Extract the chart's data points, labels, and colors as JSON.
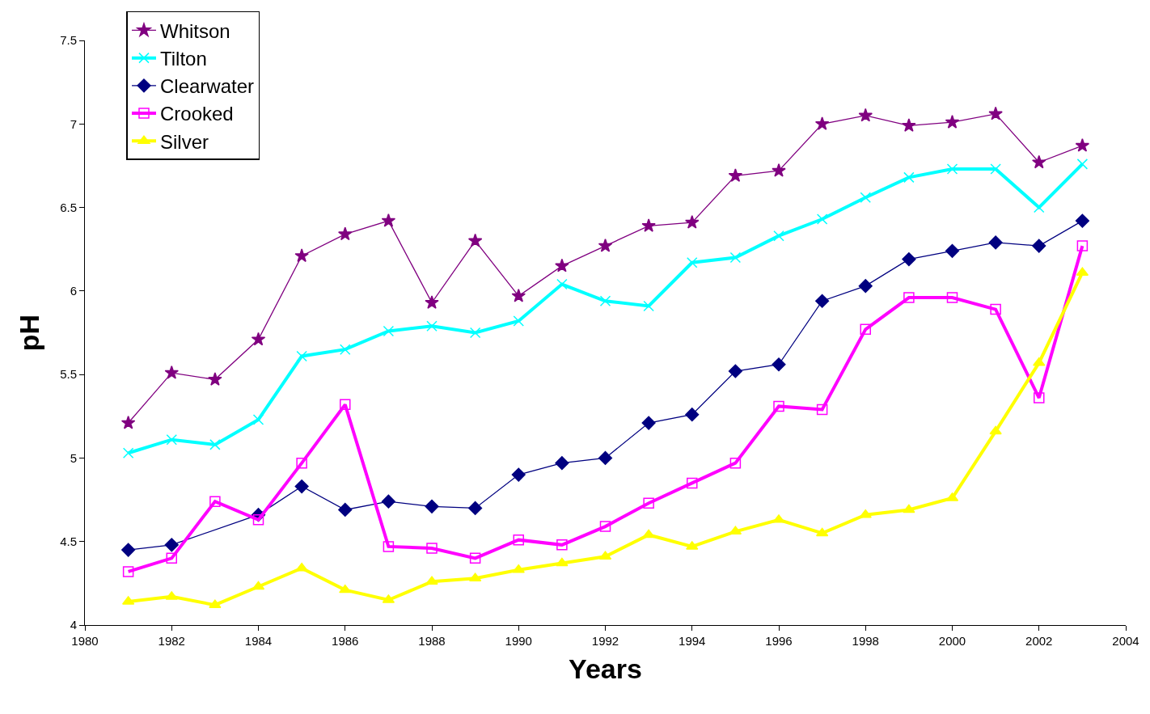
{
  "chart_data": {
    "type": "line",
    "xlabel": "Years",
    "ylabel": "pH",
    "x": [
      1981,
      1982,
      1983,
      1984,
      1985,
      1986,
      1987,
      1988,
      1989,
      1990,
      1991,
      1992,
      1993,
      1994,
      1995,
      1996,
      1997,
      1998,
      1999,
      2000,
      2001,
      2002,
      2003
    ],
    "xlim": [
      1980,
      2004
    ],
    "xticks": [
      1980,
      1982,
      1984,
      1986,
      1988,
      1990,
      1992,
      1994,
      1996,
      1998,
      2000,
      2002,
      2004
    ],
    "ylim": [
      4,
      7.5
    ],
    "yticks": [
      4,
      {
        "value": 4.5,
        "label": "4.5"
      },
      5,
      {
        "value": 5.5,
        "label": "5.5"
      },
      6,
      {
        "value": 6.5,
        "label": "6.5"
      },
      7,
      {
        "value": 7.5,
        "label": "7.5"
      }
    ],
    "legend": "top left",
    "series": [
      {
        "name": "Whitson",
        "color": "#800080",
        "marker": "star",
        "values": [
          5.21,
          5.51,
          5.47,
          5.71,
          6.21,
          6.34,
          6.42,
          5.93,
          6.3,
          5.97,
          6.15,
          6.27,
          6.39,
          6.41,
          6.69,
          6.72,
          7.0,
          7.05,
          6.99,
          7.01,
          7.06,
          6.77,
          6.87
        ]
      },
      {
        "name": "Tilton",
        "color": "#00ffff",
        "marker": "cross",
        "values": [
          5.03,
          5.11,
          5.08,
          5.23,
          5.61,
          5.65,
          5.76,
          5.79,
          5.75,
          5.82,
          6.04,
          5.94,
          5.91,
          6.17,
          6.2,
          6.33,
          6.43,
          6.56,
          6.68,
          6.73,
          6.73,
          6.5,
          6.76
        ]
      },
      {
        "name": "Clearwater",
        "color": "#000080",
        "marker": "diamond",
        "x": [
          1981,
          1982,
          1984,
          1985,
          1986,
          1987,
          1988,
          1989,
          1990,
          1991,
          1992,
          1993,
          1994,
          1995,
          1996,
          1997,
          1998,
          1999,
          2000,
          2001,
          2002,
          2003
        ],
        "values": [
          4.45,
          4.48,
          4.66,
          4.83,
          4.69,
          4.74,
          4.71,
          4.7,
          4.9,
          4.97,
          5.0,
          5.21,
          5.26,
          5.52,
          5.56,
          5.94,
          6.03,
          6.19,
          6.24,
          6.29,
          6.27,
          6.42
        ]
      },
      {
        "name": "Crooked",
        "color": "#ff00ff",
        "marker": "square",
        "values": [
          4.32,
          4.4,
          4.74,
          4.63,
          4.97,
          5.32,
          4.47,
          4.46,
          4.4,
          4.51,
          4.48,
          4.59,
          4.73,
          4.85,
          4.97,
          5.31,
          5.29,
          5.77,
          5.96,
          5.96,
          5.89,
          5.36,
          6.27
        ]
      },
      {
        "name": "Silver",
        "color": "#ffff00",
        "marker": "triangle",
        "values": [
          4.14,
          4.17,
          4.12,
          4.23,
          4.34,
          4.21,
          4.15,
          4.26,
          4.28,
          4.33,
          4.37,
          4.41,
          4.54,
          4.47,
          4.56,
          4.63,
          4.55,
          4.66,
          4.69,
          4.76,
          5.16,
          5.57,
          6.11
        ]
      }
    ]
  }
}
